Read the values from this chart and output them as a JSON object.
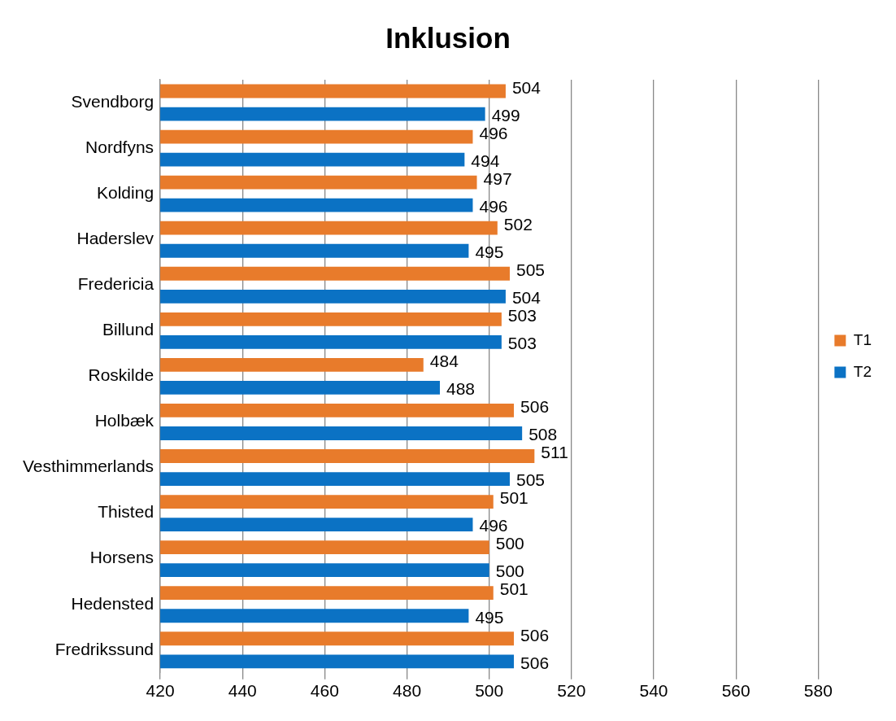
{
  "chart_data": {
    "type": "bar",
    "title": "Inklusion",
    "orientation": "horizontal",
    "categories": [
      "Svendborg",
      "Nordfyns",
      "Kolding",
      "Haderslev",
      "Fredericia",
      "Billund",
      "Roskilde",
      "Holbæk",
      "Vesthimmerlands",
      "Thisted",
      "Horsens",
      "Hedensted",
      "Fredrikssund"
    ],
    "series": [
      {
        "name": "T1",
        "color": "#e87b2b",
        "values": [
          504,
          496,
          497,
          502,
          505,
          503,
          484,
          506,
          511,
          501,
          500,
          501,
          506
        ]
      },
      {
        "name": "T2",
        "color": "#0b72c4",
        "values": [
          499,
          494,
          496,
          495,
          504,
          503,
          488,
          508,
          505,
          496,
          500,
          495,
          506
        ]
      }
    ],
    "xlim": [
      420,
      580
    ],
    "xticks": [
      420,
      440,
      460,
      480,
      500,
      520,
      540,
      560,
      580
    ],
    "grid": "x",
    "legend": "right",
    "data_labels": true
  }
}
